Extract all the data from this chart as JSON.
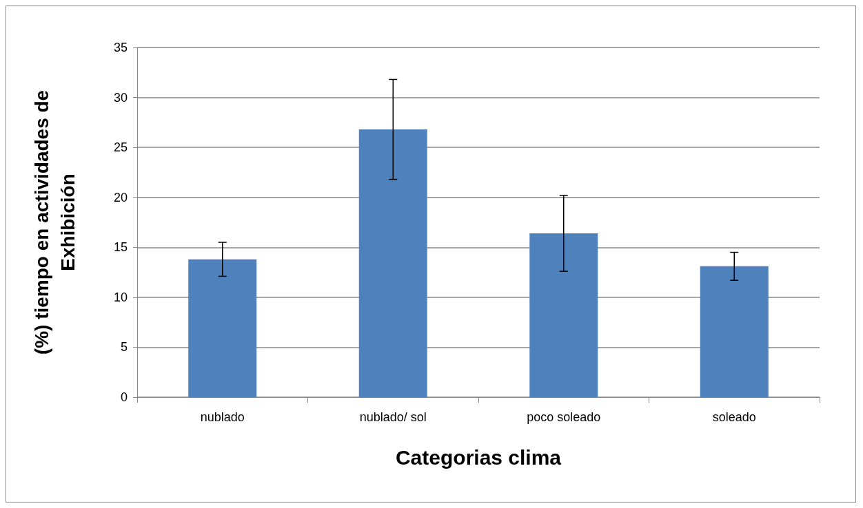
{
  "chart_data": {
    "type": "bar",
    "xlabel": "Categorias clima",
    "ylabel": "(%) tiempo en actividades de\nExhibición",
    "categories": [
      "nublado",
      "nublado/ sol",
      "poco soleado",
      "soleado"
    ],
    "values": [
      13.8,
      26.8,
      16.4,
      13.1
    ],
    "errors": [
      1.7,
      5.0,
      3.8,
      1.4
    ],
    "color": "#4f81bd",
    "ylim": [
      0,
      35
    ],
    "yticks": [
      0,
      5,
      10,
      15,
      20,
      25,
      30,
      35
    ],
    "grid": "y"
  }
}
